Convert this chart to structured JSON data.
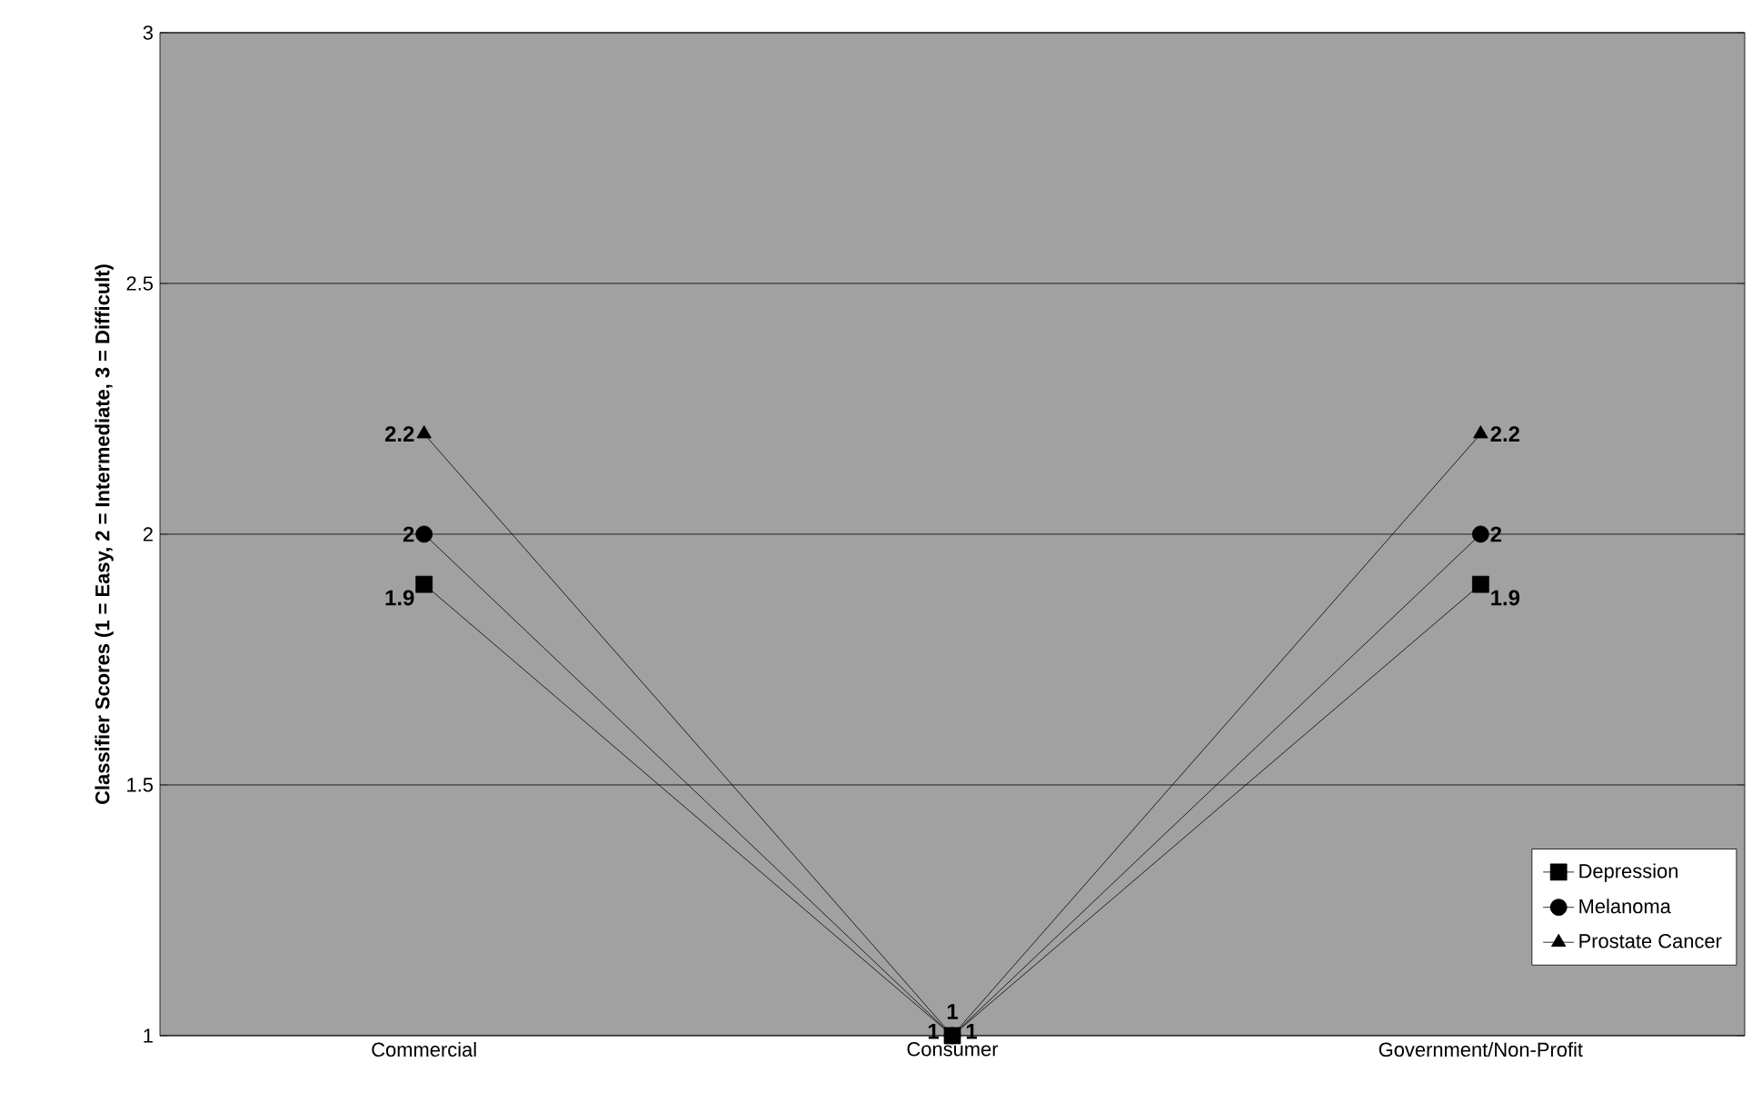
{
  "chart_data": {
    "type": "line",
    "ylabel": "Classifier Scores (1 = Easy, 2 = Intermediate, 3 = Difficult)",
    "categories": [
      "Commercial",
      "Consumer",
      "Government/Non-Profit"
    ],
    "series": [
      {
        "name": "Depression",
        "color": "#000000",
        "marker": "square",
        "values": [
          1.9,
          1,
          1.9
        ]
      },
      {
        "name": "Melanoma",
        "color": "#000000",
        "marker": "circle",
        "values": [
          2,
          1,
          2
        ]
      },
      {
        "name": "Prostate Cancer",
        "color": "#000000",
        "marker": "triangle",
        "values": [
          2.2,
          1,
          2.2
        ]
      }
    ],
    "ylim": [
      1,
      3
    ],
    "yticks": [
      1,
      1.5,
      2,
      2.5,
      3
    ],
    "grid": "y",
    "legend": "bottom right",
    "data_labels": true,
    "line_style": "solid"
  }
}
